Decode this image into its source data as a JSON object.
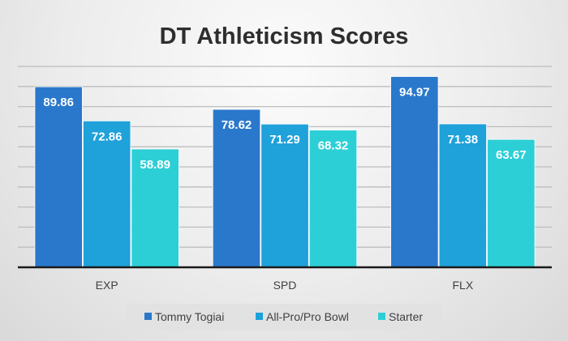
{
  "chart_data": {
    "type": "bar",
    "title": "DT Athleticism Scores",
    "categories": [
      "EXP",
      "SPD",
      "FLX"
    ],
    "series": [
      {
        "name": "Tommy Togiai",
        "values": [
          89.86,
          78.62,
          94.97
        ],
        "color": "#2a78cc"
      },
      {
        "name": "All-Pro/Pro Bowl",
        "values": [
          72.86,
          71.29,
          71.38
        ],
        "color": "#1fa1da"
      },
      {
        "name": "Starter",
        "values": [
          58.89,
          68.32,
          63.67
        ],
        "color": "#2dcfd6"
      }
    ],
    "ylim": [
      0,
      100
    ],
    "ytick_step": 10,
    "y_tick_labels_shown": false,
    "grid": true,
    "data_labels": true,
    "legend_position": "bottom"
  }
}
